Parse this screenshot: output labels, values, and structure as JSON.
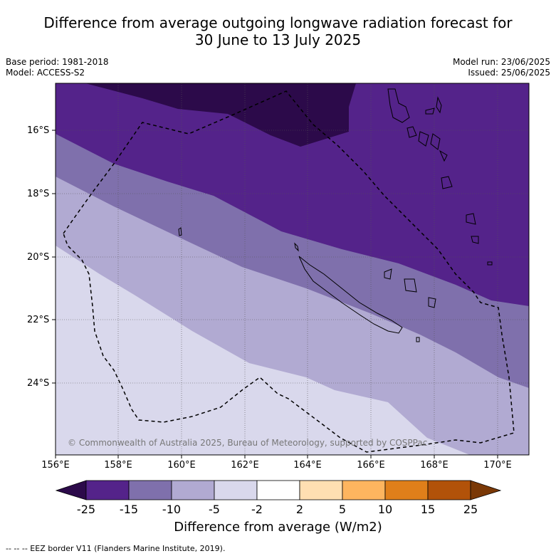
{
  "title_line1": "Difference from average outgoing longwave radiation forecast for",
  "title_line2": "30 June to 13 July 2025",
  "meta_left": [
    "Base period: 1981-2018",
    "Model: ACCESS-S2"
  ],
  "meta_right": [
    "Model run: 23/06/2025",
    "Issued: 25/06/2025"
  ],
  "map": {
    "lon_range": [
      156,
      171
    ],
    "lat_range": [
      -26.1,
      -14.5
    ],
    "lat_ticks": [
      "16°S",
      "18°S",
      "20°S",
      "22°S",
      "24°S"
    ],
    "lon_ticks": [
      "156°E",
      "158°E",
      "160°E",
      "162°E",
      "164°E",
      "166°E",
      "168°E",
      "170°E"
    ],
    "copyright": "© Commonwealth of Australia 2025, Bureau of Meteorology, supported by COSPPac",
    "gridlines": true
  },
  "colorbar": {
    "ticks": [
      "-25",
      "-15",
      "-10",
      "-5",
      "-2",
      "2",
      "5",
      "10",
      "15",
      "25"
    ],
    "colors": [
      "#2c0a4a",
      "#54238a",
      "#7f70ac",
      "#b1aad2",
      "#d9d8ec",
      "#ffffff",
      "#ffdfb2",
      "#fdb55f",
      "#e07f1a",
      "#b25209",
      "#7a3806"
    ],
    "label": "Difference from average (W/m2)"
  },
  "footnote": "--  --  -- EEZ border V11 (Flanders Marine Institute, 2019)."
}
